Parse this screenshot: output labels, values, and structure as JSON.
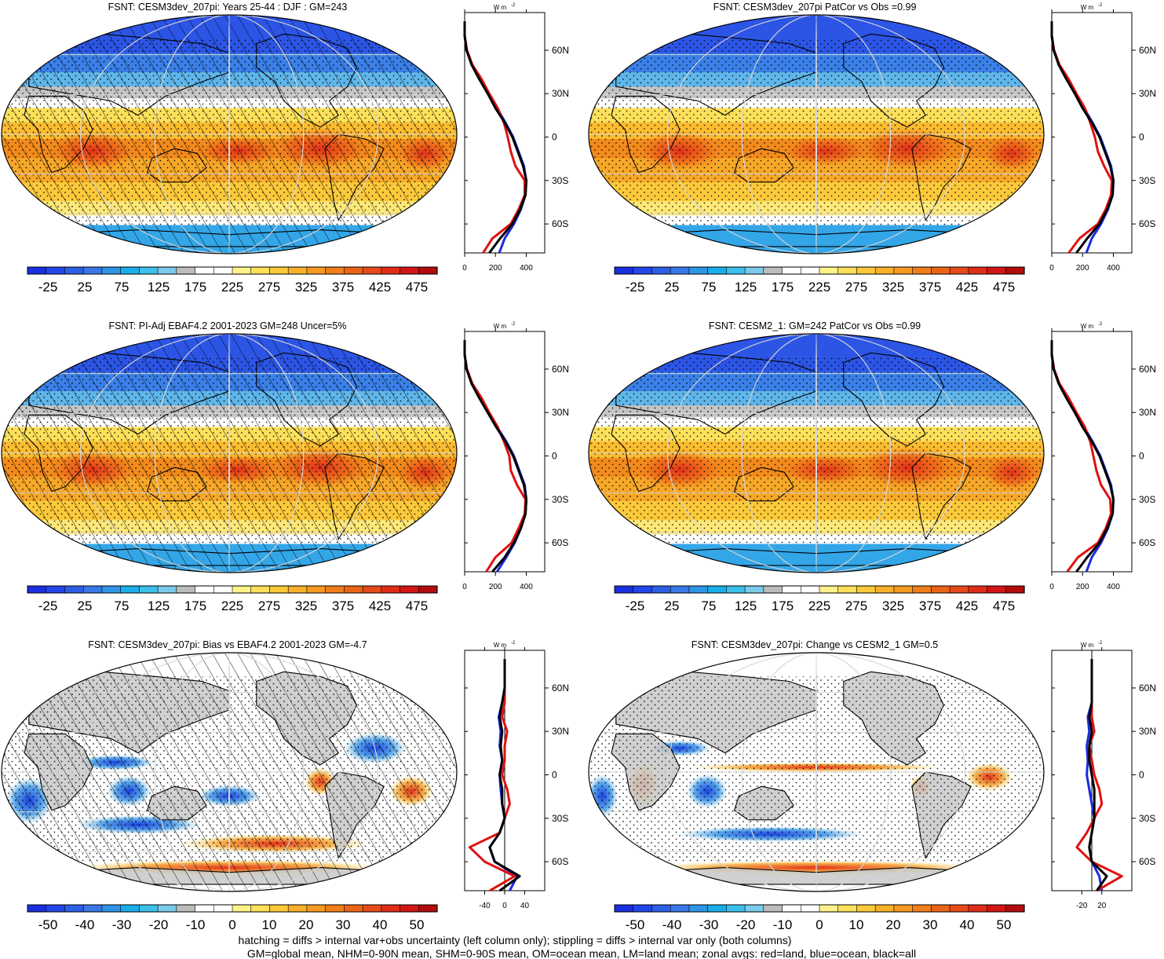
{
  "panels": [
    {
      "id": "p1",
      "title": "FSNT: CESM3dev_207pi: Years 25-44 : DJF : GM=243",
      "kind": "abs",
      "hatch": true,
      "colorbar_ticks": [
        "-25",
        "25",
        "75",
        "125",
        "175",
        "225",
        "275",
        "325",
        "375",
        "425",
        "475"
      ],
      "lat_ticks": [
        "60N",
        "30N",
        "0",
        "30S",
        "60S"
      ],
      "profile_ticks": [
        "0",
        "200",
        "400"
      ],
      "units": "W m",
      "units_sup": "-2"
    },
    {
      "id": "p2",
      "title": "FSNT: CESM3dev_207pi PatCor vs Obs =0.99",
      "kind": "abs",
      "hatch": false,
      "colorbar_ticks": [
        "-25",
        "25",
        "75",
        "125",
        "175",
        "225",
        "275",
        "325",
        "375",
        "425",
        "475"
      ],
      "lat_ticks": [
        "60N",
        "30N",
        "0",
        "30S",
        "60S"
      ],
      "profile_ticks": [
        "0",
        "200",
        "400"
      ],
      "units": "W m",
      "units_sup": "-2"
    },
    {
      "id": "p3",
      "title": "FSNT: PI-Adj EBAF4.2 2001-2023 GM=248 Uncer=5%",
      "kind": "abs",
      "hatch": true,
      "colorbar_ticks": [
        "-25",
        "25",
        "75",
        "125",
        "175",
        "225",
        "275",
        "325",
        "375",
        "425",
        "475"
      ],
      "lat_ticks": [
        "60N",
        "30N",
        "0",
        "30S",
        "60S"
      ],
      "profile_ticks": [
        "0",
        "200",
        "400"
      ],
      "units": "W m",
      "units_sup": "-2"
    },
    {
      "id": "p4",
      "title": "FSNT: CESM2_1: GM=242 PatCor vs Obs =0.99",
      "kind": "abs",
      "hatch": false,
      "colorbar_ticks": [
        "-25",
        "25",
        "75",
        "125",
        "175",
        "225",
        "275",
        "325",
        "375",
        "425",
        "475"
      ],
      "lat_ticks": [
        "60N",
        "30N",
        "0",
        "30S",
        "60S"
      ],
      "profile_ticks": [
        "0",
        "200",
        "400"
      ],
      "units": "W m",
      "units_sup": "-2"
    },
    {
      "id": "p5",
      "title": "FSNT: CESM3dev_207pi: Bias vs EBAF4.2 2001-2023 GM=-4.7",
      "kind": "diff",
      "hatch": true,
      "colorbar_ticks": [
        "-50",
        "-40",
        "-30",
        "-20",
        "-10",
        "0",
        "10",
        "20",
        "30",
        "40",
        "50"
      ],
      "lat_ticks": [
        "60N",
        "30N",
        "0",
        "30S",
        "60S"
      ],
      "profile_ticks": [
        "-40",
        "0",
        "40"
      ],
      "units": "W m",
      "units_sup": "-2"
    },
    {
      "id": "p6",
      "title": "FSNT: CESM3dev_207pi: Change vs CESM2_1 GM=0.5",
      "kind": "diff",
      "hatch": false,
      "colorbar_ticks": [
        "-50",
        "-40",
        "-30",
        "-20",
        "-10",
        "0",
        "10",
        "20",
        "30",
        "40",
        "50"
      ],
      "lat_ticks": [
        "60N",
        "30N",
        "0",
        "30S",
        "60S"
      ],
      "profile_ticks": [
        "-20",
        "20"
      ],
      "units": "W m",
      "units_sup": "-2"
    }
  ],
  "colors": {
    "abs_scale": [
      "#1a2fe0",
      "#2346e8",
      "#2c5fe6",
      "#3a78e8",
      "#2f95e6",
      "#1aaee8",
      "#3cc0ea",
      "#7ccaea",
      "#bcbcbc",
      "#ffffff",
      "#ffffff",
      "#fff28a",
      "#fde05a",
      "#fbc93a",
      "#f8b02a",
      "#f59a20",
      "#f07e1a",
      "#ea6418",
      "#e64a1a",
      "#e02d18",
      "#d21515",
      "#b20c0c"
    ],
    "diff_scale": [
      "#1a2fe0",
      "#2346e8",
      "#2c5fe6",
      "#3a78e8",
      "#2f95e6",
      "#1aaee8",
      "#3cc0ea",
      "#7ccaea",
      "#bcbcbc",
      "#ffffff",
      "#ffffff",
      "#fff28a",
      "#fde05a",
      "#fbc93a",
      "#f8b02a",
      "#f59a20",
      "#f07e1a",
      "#ea6418",
      "#e64a1a",
      "#e02d18",
      "#d21515",
      "#b20c0c"
    ],
    "land_line": "#e01010",
    "ocean_line": "#1a2ae0",
    "all_line": "#000000",
    "land_mask": "#c8c8c8",
    "grid": "#d6d6d6"
  },
  "chart_data": [
    {
      "type": "heatmap",
      "panel": "p1",
      "title": "FSNT: CESM3dev_207pi: Years 25-44 : DJF : GM=243",
      "units": "W m-2",
      "zonal_mean": {
        "lat": [
          -90,
          -80,
          -70,
          -60,
          -50,
          -40,
          -30,
          -20,
          -10,
          0,
          10,
          20,
          30,
          40,
          50,
          60,
          70,
          80,
          90
        ],
        "all": [
          130,
          160,
          230,
          310,
          360,
          395,
          400,
          380,
          345,
          310,
          260,
          200,
          150,
          95,
          45,
          12,
          0,
          0,
          0
        ],
        "land": [
          135,
          120,
          180,
          300,
          350,
          390,
          390,
          330,
          300,
          280,
          255,
          215,
          160,
          110,
          50,
          15,
          0,
          0,
          0
        ],
        "ocean": [
          160,
          225,
          260,
          320,
          365,
          395,
          400,
          385,
          350,
          315,
          265,
          210,
          155,
          100,
          48,
          14,
          0,
          0,
          0
        ]
      }
    },
    {
      "type": "heatmap",
      "panel": "p2",
      "title": "FSNT: CESM3dev_207pi PatCor vs Obs =0.99",
      "units": "W m-2",
      "zonal_mean": {
        "lat": [
          -90,
          -80,
          -70,
          -60,
          -50,
          -40,
          -30,
          -20,
          -10,
          0,
          10,
          20,
          30,
          40,
          50,
          60,
          70,
          80,
          90
        ],
        "all": [
          130,
          160,
          230,
          310,
          360,
          395,
          400,
          380,
          345,
          310,
          260,
          200,
          150,
          95,
          45,
          12,
          0,
          0,
          0
        ],
        "land": [
          135,
          110,
          180,
          300,
          350,
          385,
          390,
          340,
          300,
          280,
          250,
          215,
          160,
          110,
          50,
          15,
          0,
          0,
          0
        ],
        "ocean": [
          160,
          225,
          260,
          320,
          365,
          395,
          400,
          385,
          350,
          315,
          265,
          210,
          155,
          100,
          48,
          14,
          0,
          0,
          0
        ]
      }
    },
    {
      "type": "heatmap",
      "panel": "p3",
      "title": "FSNT: PI-Adj EBAF4.2 2001-2023 GM=248 Uncer=5%",
      "units": "W m-2",
      "zonal_mean": {
        "lat": [
          -90,
          -80,
          -70,
          -60,
          -50,
          -40,
          -30,
          -20,
          -10,
          0,
          10,
          20,
          30,
          40,
          50,
          60,
          70,
          80,
          90
        ],
        "all": [
          150,
          180,
          260,
          320,
          365,
          395,
          400,
          385,
          350,
          315,
          265,
          205,
          150,
          95,
          45,
          12,
          0,
          0,
          0
        ],
        "land": [
          140,
          140,
          200,
          305,
          350,
          390,
          395,
          340,
          300,
          290,
          255,
          215,
          160,
          110,
          50,
          15,
          0,
          0,
          0
        ],
        "ocean": [
          170,
          210,
          270,
          325,
          365,
          395,
          400,
          390,
          355,
          320,
          270,
          210,
          155,
          100,
          48,
          14,
          0,
          0,
          0
        ]
      }
    },
    {
      "type": "heatmap",
      "panel": "p4",
      "title": "FSNT: CESM2_1: GM=242 PatCor vs Obs =0.99",
      "units": "W m-2",
      "zonal_mean": {
        "lat": [
          -90,
          -80,
          -70,
          -60,
          -50,
          -40,
          -30,
          -20,
          -10,
          0,
          10,
          20,
          30,
          40,
          50,
          60,
          70,
          80,
          90
        ],
        "all": [
          130,
          160,
          230,
          310,
          360,
          395,
          400,
          380,
          345,
          310,
          260,
          200,
          150,
          95,
          45,
          12,
          0,
          0,
          0
        ],
        "land": [
          120,
          100,
          170,
          300,
          350,
          385,
          380,
          320,
          290,
          270,
          250,
          215,
          160,
          110,
          50,
          15,
          0,
          0,
          0
        ],
        "ocean": [
          160,
          225,
          260,
          320,
          365,
          395,
          400,
          385,
          350,
          315,
          265,
          210,
          155,
          100,
          48,
          14,
          0,
          0,
          0
        ]
      }
    },
    {
      "type": "heatmap",
      "panel": "p5",
      "title": "FSNT: CESM3dev_207pi: Bias vs EBAF4.2 2001-2023 GM=-4.7",
      "units": "W m-2",
      "zonal_mean": {
        "lat": [
          -90,
          -80,
          -70,
          -60,
          -50,
          -40,
          -30,
          -20,
          -10,
          0,
          10,
          20,
          30,
          40,
          50,
          60,
          70,
          80,
          90
        ],
        "all": [
          -20,
          -10,
          30,
          -20,
          -30,
          -10,
          0,
          -5,
          -5,
          -10,
          -5,
          -8,
          -5,
          -10,
          -5,
          0,
          0,
          0,
          0
        ],
        "land": [
          -20,
          -30,
          20,
          -40,
          -70,
          -10,
          0,
          10,
          5,
          -5,
          0,
          0,
          5,
          -5,
          0,
          0,
          0,
          0,
          0
        ],
        "ocean": [
          -10,
          10,
          25,
          -20,
          -30,
          -10,
          0,
          -5,
          -8,
          -10,
          -5,
          -10,
          -8,
          -12,
          -5,
          0,
          0,
          0,
          0
        ]
      }
    },
    {
      "type": "heatmap",
      "panel": "p6",
      "title": "FSNT: CESM3dev_207pi: Change vs CESM2_1 GM=0.5",
      "units": "W m-2",
      "zonal_mean": {
        "lat": [
          -90,
          -80,
          -70,
          -60,
          -50,
          -40,
          -30,
          -20,
          -10,
          0,
          10,
          20,
          30,
          40,
          50,
          60,
          70,
          80,
          90
        ],
        "all": [
          0,
          10,
          30,
          0,
          -5,
          0,
          5,
          5,
          5,
          0,
          -5,
          -5,
          0,
          -5,
          0,
          0,
          0,
          0,
          0
        ],
        "land": [
          0,
          10,
          60,
          0,
          -30,
          -10,
          5,
          20,
          15,
          5,
          0,
          -5,
          5,
          0,
          0,
          0,
          0,
          0,
          0
        ],
        "ocean": [
          0,
          20,
          15,
          0,
          -5,
          0,
          5,
          0,
          -5,
          -10,
          -8,
          -10,
          -5,
          -8,
          0,
          0,
          0,
          0,
          0
        ]
      }
    }
  ],
  "footer": {
    "line1": "hatching = diffs > internal var+obs uncertainty (left column only); stippling = diffs > internal var only (both columns)",
    "line2": "GM=global mean, NHM=0-90N mean, SHM=0-90S mean, OM=ocean mean, LM=land mean; zonal avgs: red=land, blue=ocean, black=all"
  }
}
